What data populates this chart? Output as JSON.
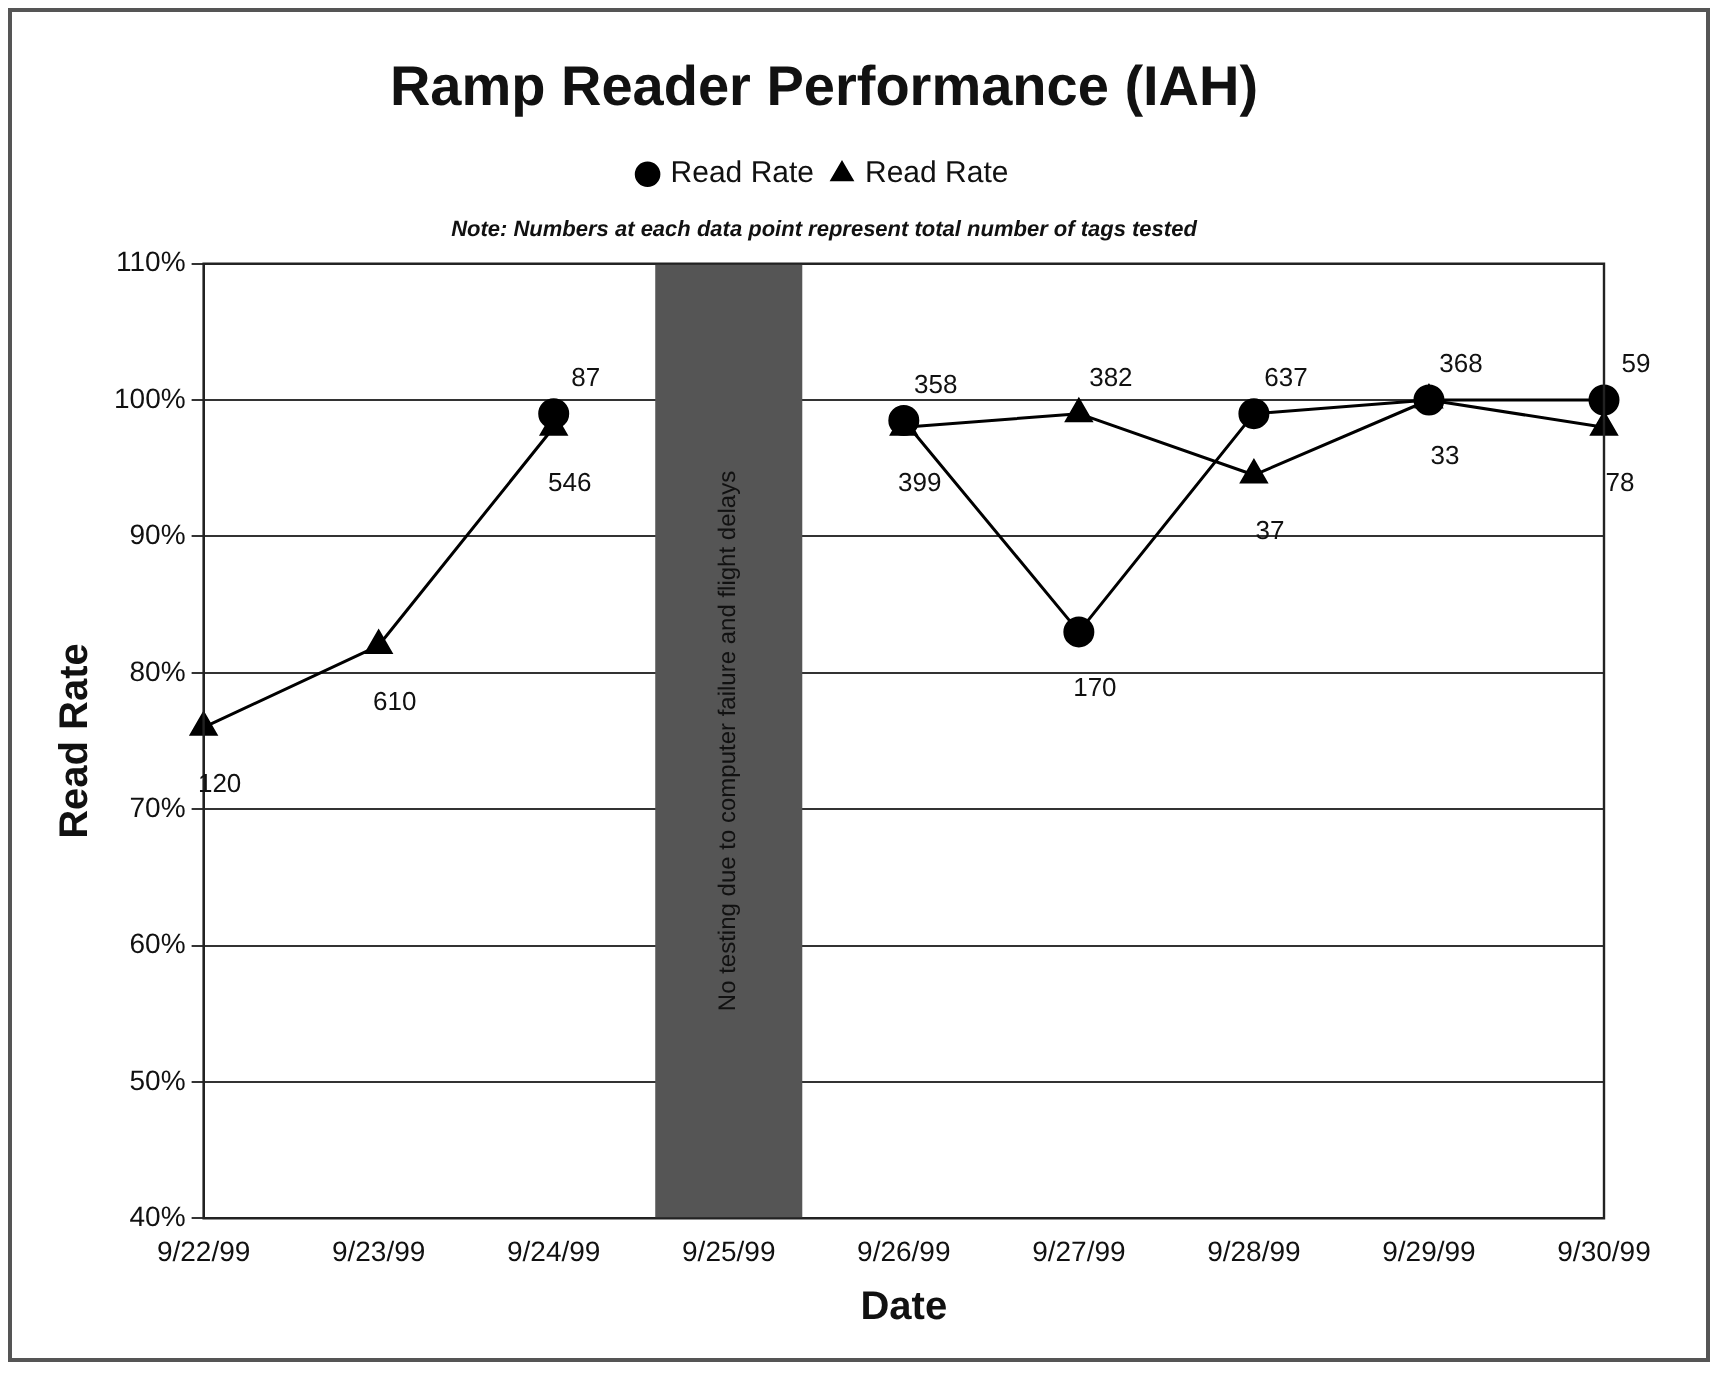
{
  "chart_data": {
    "type": "line",
    "title": "Ramp Reader Performance (IAH)",
    "xlabel": "Date",
    "ylabel": "Read Rate",
    "subtitle": "Note: Numbers at each data point represent total number of tags tested",
    "categories": [
      "9/22/99",
      "9/23/99",
      "9/24/99",
      "9/25/99",
      "9/26/99",
      "9/27/99",
      "9/28/99",
      "9/29/99",
      "9/30/99"
    ],
    "series": [
      {
        "name": "Read Rate",
        "color": "#000000",
        "marker": "circle",
        "values": [
          null,
          null,
          99,
          null,
          98.5,
          83,
          99,
          100,
          100
        ]
      },
      {
        "name": "Read Rate",
        "color": "#000000",
        "marker": "triangle",
        "values": [
          76,
          82,
          98,
          null,
          98,
          99,
          94.5,
          100,
          98
        ]
      }
    ],
    "annotations": [
      {
        "text": "120",
        "x": "9/22/99",
        "y": 76
      },
      {
        "text": "610",
        "x": "9/23/99",
        "y": 82
      },
      {
        "text": "87",
        "x": "9/24/99",
        "y": 99
      },
      {
        "text": "546",
        "x": "9/24/99",
        "y": 98
      },
      {
        "text": "358",
        "x": "9/26/99",
        "y": 98.5
      },
      {
        "text": "399",
        "x": "9/26/99",
        "y": 98
      },
      {
        "text": "382",
        "x": "9/27/99",
        "y": 99
      },
      {
        "text": "170",
        "x": "9/27/99",
        "y": 83
      },
      {
        "text": "637",
        "x": "9/28/99",
        "y": 99
      },
      {
        "text": "37",
        "x": "9/28/99",
        "y": 94.5
      },
      {
        "text": "368",
        "x": "9/29/99",
        "y": 100
      },
      {
        "text": "33",
        "x": "9/29/99",
        "y": 100
      },
      {
        "text": "59",
        "x": "9/30/99",
        "y": 100
      },
      {
        "text": "78",
        "x": "9/30/99",
        "y": 98
      }
    ],
    "ylim": [
      40,
      110
    ],
    "yticks": [
      {
        "value": 40,
        "label": "40%"
      },
      {
        "value": 50,
        "label": "50%"
      },
      {
        "value": 60,
        "label": "60%"
      },
      {
        "value": 70,
        "label": "70%"
      },
      {
        "value": 80,
        "label": "80%"
      },
      {
        "value": 90,
        "label": "90%"
      },
      {
        "value": 100,
        "label": "100%"
      },
      {
        "value": 110,
        "label": "110%"
      }
    ],
    "bands": [
      {
        "axis": "x",
        "from": "9/25/99",
        "to": "9/25/99",
        "label": "No testing due to computer failure and flight delays",
        "color": "#555555"
      }
    ],
    "grid": "y",
    "legend": "top",
    "line_style": "solid"
  }
}
